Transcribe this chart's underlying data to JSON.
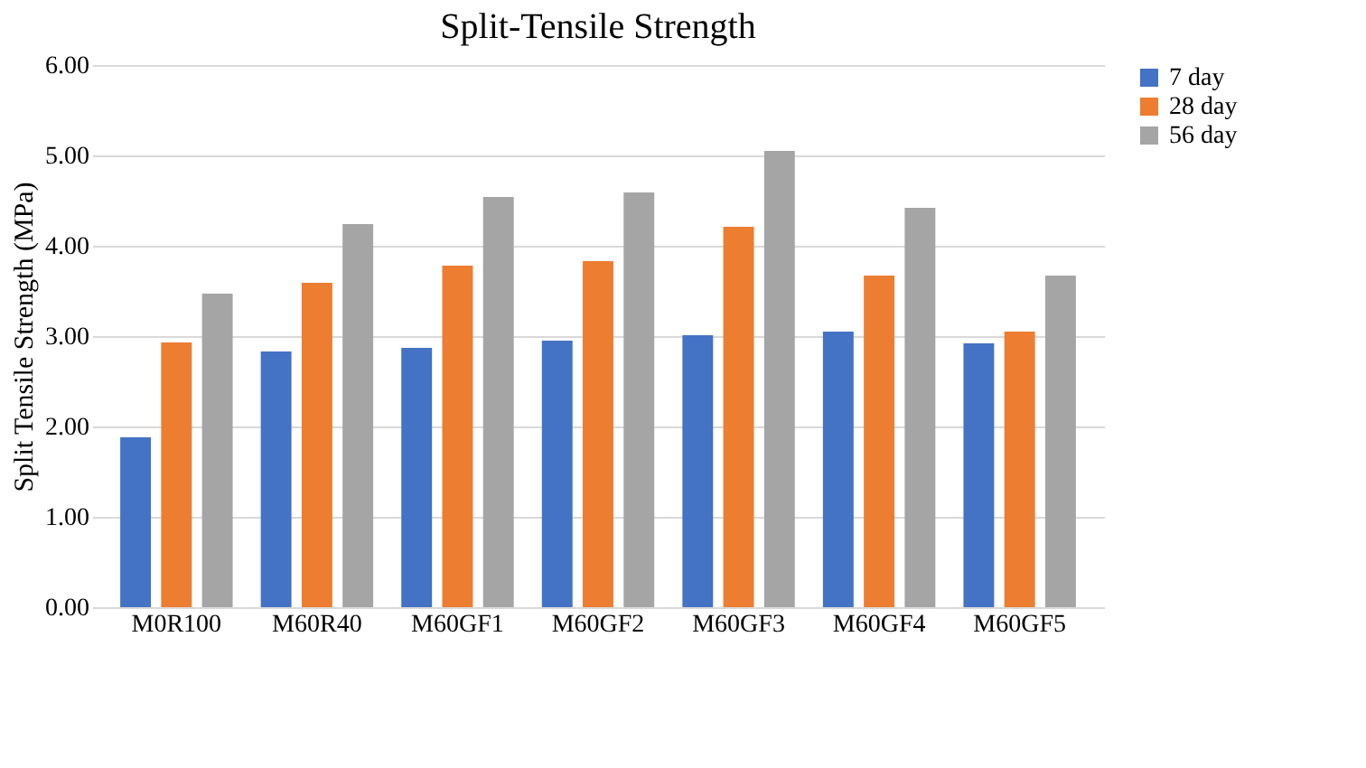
{
  "chart_data": {
    "type": "bar",
    "title": "Split-Tensile Strength",
    "ylabel": "Split Tensile Strength (MPa)",
    "categories": [
      "M0R100",
      "M60R40",
      "M60GF1",
      "M60GF2",
      "M60GF3",
      "M60GF4",
      "M60GF5"
    ],
    "series": [
      {
        "name": "7 day",
        "color": "#4472c4",
        "values": [
          1.88,
          2.83,
          2.87,
          2.95,
          3.01,
          3.05,
          2.92
        ]
      },
      {
        "name": "28 day",
        "color": "#ed7d31",
        "values": [
          2.93,
          3.59,
          3.78,
          3.83,
          4.21,
          3.67,
          3.05
        ]
      },
      {
        "name": "56 day",
        "color": "#a5a5a5",
        "values": [
          3.47,
          4.24,
          4.54,
          4.59,
          5.05,
          4.42,
          3.67
        ]
      }
    ],
    "ylim": [
      0,
      6
    ],
    "yticks": [
      {
        "value": 0,
        "label": "0.00"
      },
      {
        "value": 1,
        "label": "1.00"
      },
      {
        "value": 2,
        "label": "2.00"
      },
      {
        "value": 3,
        "label": "3.00"
      },
      {
        "value": 4,
        "label": "4.00"
      },
      {
        "value": 5,
        "label": "5.00"
      },
      {
        "value": 6,
        "label": "6.00"
      }
    ],
    "grid": "y",
    "legend": "right"
  }
}
